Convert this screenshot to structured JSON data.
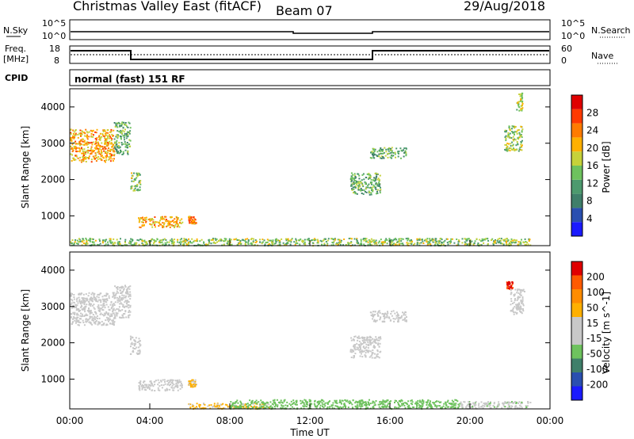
{
  "header": {
    "site": "Christmas Valley East (fitACF)",
    "beam": "Beam 07",
    "date": "29/Aug/2018"
  },
  "noise_panel": {
    "left_label": "N.Sky",
    "left_ticks": [
      "10^5",
      "10^0"
    ],
    "right_label": "N.Search",
    "right_ticks": [
      "10^5",
      "10^0"
    ]
  },
  "freq_panel": {
    "left_label_1": "Freq.",
    "left_label_2": "[MHz]",
    "left_ticks": [
      "18",
      "8"
    ],
    "right_label": "Nave",
    "right_ticks": [
      "60",
      "0"
    ]
  },
  "cpid": {
    "label": "CPID",
    "text": "normal (fast) 151 RF"
  },
  "xaxis": {
    "label": "Time UT",
    "ticks": [
      "00:00",
      "04:00",
      "08:00",
      "12:00",
      "16:00",
      "20:00",
      "00:00"
    ]
  },
  "colors": {
    "power_scale": [
      "#1a1aff",
      "#2a4fb0",
      "#3f7f6a",
      "#4d9a6e",
      "#6ec25e",
      "#c6d23a",
      "#ffb000",
      "#ff7b00",
      "#ff3a00",
      "#e00000"
    ],
    "velocity_scale": [
      "#1a1aff",
      "#2a4fb0",
      "#3f7f6a",
      "#6ec25e",
      "#c8c8c8",
      "#c8c8c8",
      "#ffb000",
      "#ff8c00",
      "#ff5a00",
      "#e00000"
    ]
  },
  "chart_data": [
    {
      "type": "heatmap",
      "title": "",
      "ylabel": "Slant Range [km]",
      "xlabel": "",
      "x_range_hours": [
        0,
        24
      ],
      "ylim": [
        180,
        4500
      ],
      "yticks": [
        1000,
        2000,
        3000,
        4000
      ],
      "colorbar": {
        "label": "Power [dB]",
        "ticks": [
          "4",
          "8",
          "12",
          "16",
          "20",
          "24",
          "28"
        ],
        "range": [
          0,
          30
        ]
      },
      "regions": [
        {
          "t0": 0.0,
          "t1": 2.2,
          "r0": 2500,
          "r1": 3400,
          "value": 20
        },
        {
          "t0": 2.2,
          "t1": 3.0,
          "r0": 2700,
          "r1": 3600,
          "value": 12
        },
        {
          "t0": 3.0,
          "t1": 3.5,
          "r0": 1700,
          "r1": 2200,
          "value": 14
        },
        {
          "t0": 3.4,
          "t1": 5.6,
          "r0": 700,
          "r1": 1000,
          "value": 20
        },
        {
          "t0": 5.9,
          "t1": 6.3,
          "r0": 800,
          "r1": 1000,
          "value": 22
        },
        {
          "t0": 0.0,
          "t1": 23.0,
          "r0": 200,
          "r1": 400,
          "value": 14
        },
        {
          "t0": 14.0,
          "t1": 15.5,
          "r0": 1600,
          "r1": 2200,
          "value": 12
        },
        {
          "t0": 15.0,
          "t1": 16.8,
          "r0": 2600,
          "r1": 2900,
          "value": 12
        },
        {
          "t0": 21.7,
          "t1": 22.6,
          "r0": 2800,
          "r1": 3500,
          "value": 14
        },
        {
          "t0": 22.3,
          "t1": 22.6,
          "r0": 3900,
          "r1": 4400,
          "value": 16
        }
      ]
    },
    {
      "type": "heatmap",
      "title": "",
      "ylabel": "Slant Range [km]",
      "xlabel": "Time UT",
      "x_range_hours": [
        0,
        24
      ],
      "ylim": [
        180,
        4500
      ],
      "yticks": [
        1000,
        2000,
        3000,
        4000
      ],
      "colorbar": {
        "label": "Velocity [m s^-1]",
        "ticks": [
          "200",
          "100",
          "50",
          "15",
          "-15",
          "-50",
          "-100",
          "-200"
        ],
        "range": [
          -250,
          250
        ]
      },
      "regions": [
        {
          "t0": 0.0,
          "t1": 2.2,
          "r0": 2500,
          "r1": 3400,
          "value": 0
        },
        {
          "t0": 2.2,
          "t1": 3.0,
          "r0": 2700,
          "r1": 3600,
          "value": 0
        },
        {
          "t0": 3.0,
          "t1": 3.5,
          "r0": 1700,
          "r1": 2200,
          "value": 0
        },
        {
          "t0": 3.4,
          "t1": 5.6,
          "r0": 700,
          "r1": 1000,
          "value": 0
        },
        {
          "t0": 5.9,
          "t1": 6.3,
          "r0": 800,
          "r1": 1000,
          "value": 60
        },
        {
          "t0": 5.9,
          "t1": 10.0,
          "r0": 200,
          "r1": 350,
          "value": 60
        },
        {
          "t0": 8.0,
          "t1": 19.5,
          "r0": 200,
          "r1": 450,
          "value": -70
        },
        {
          "t0": 19.5,
          "t1": 23.0,
          "r0": 200,
          "r1": 400,
          "value": -40
        },
        {
          "t0": 14.0,
          "t1": 15.5,
          "r0": 1600,
          "r1": 2200,
          "value": 0
        },
        {
          "t0": 15.0,
          "t1": 16.8,
          "r0": 2600,
          "r1": 2900,
          "value": 0
        },
        {
          "t0": 22.0,
          "t1": 22.7,
          "r0": 2800,
          "r1": 3500,
          "value": 0
        },
        {
          "t0": 21.8,
          "t1": 22.1,
          "r0": 3500,
          "r1": 3700,
          "value": 200
        }
      ]
    }
  ]
}
